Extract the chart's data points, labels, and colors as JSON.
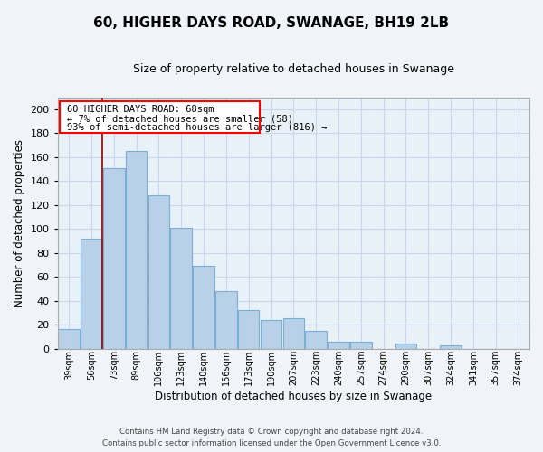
{
  "title": "60, HIGHER DAYS ROAD, SWANAGE, BH19 2LB",
  "subtitle": "Size of property relative to detached houses in Swanage",
  "xlabel": "Distribution of detached houses by size in Swanage",
  "ylabel": "Number of detached properties",
  "bar_labels": [
    "39sqm",
    "56sqm",
    "73sqm",
    "89sqm",
    "106sqm",
    "123sqm",
    "140sqm",
    "156sqm",
    "173sqm",
    "190sqm",
    "207sqm",
    "223sqm",
    "240sqm",
    "257sqm",
    "274sqm",
    "290sqm",
    "307sqm",
    "324sqm",
    "341sqm",
    "357sqm",
    "374sqm"
  ],
  "bar_values": [
    16,
    92,
    151,
    165,
    128,
    101,
    69,
    48,
    32,
    24,
    25,
    15,
    6,
    6,
    0,
    4,
    0,
    3,
    0,
    0,
    0
  ],
  "bar_color": "#b8d0e8",
  "bar_edge_color": "#7aafd4",
  "ylim": [
    0,
    210
  ],
  "yticks": [
    0,
    20,
    40,
    60,
    80,
    100,
    120,
    140,
    160,
    180,
    200
  ],
  "property_line_x": 2.0,
  "property_line_label": "60 HIGHER DAYS ROAD: 68sqm",
  "annotation_line1": "← 7% of detached houses are smaller (58)",
  "annotation_line2": "93% of semi-detached houses are larger (816) →",
  "footer_line1": "Contains HM Land Registry data © Crown copyright and database right 2024.",
  "footer_line2": "Contains public sector information licensed under the Open Government Licence v3.0.",
  "background_color": "#f0f4f8",
  "plot_bg_color": "#e8f0f8",
  "grid_color": "#c8d8e8"
}
